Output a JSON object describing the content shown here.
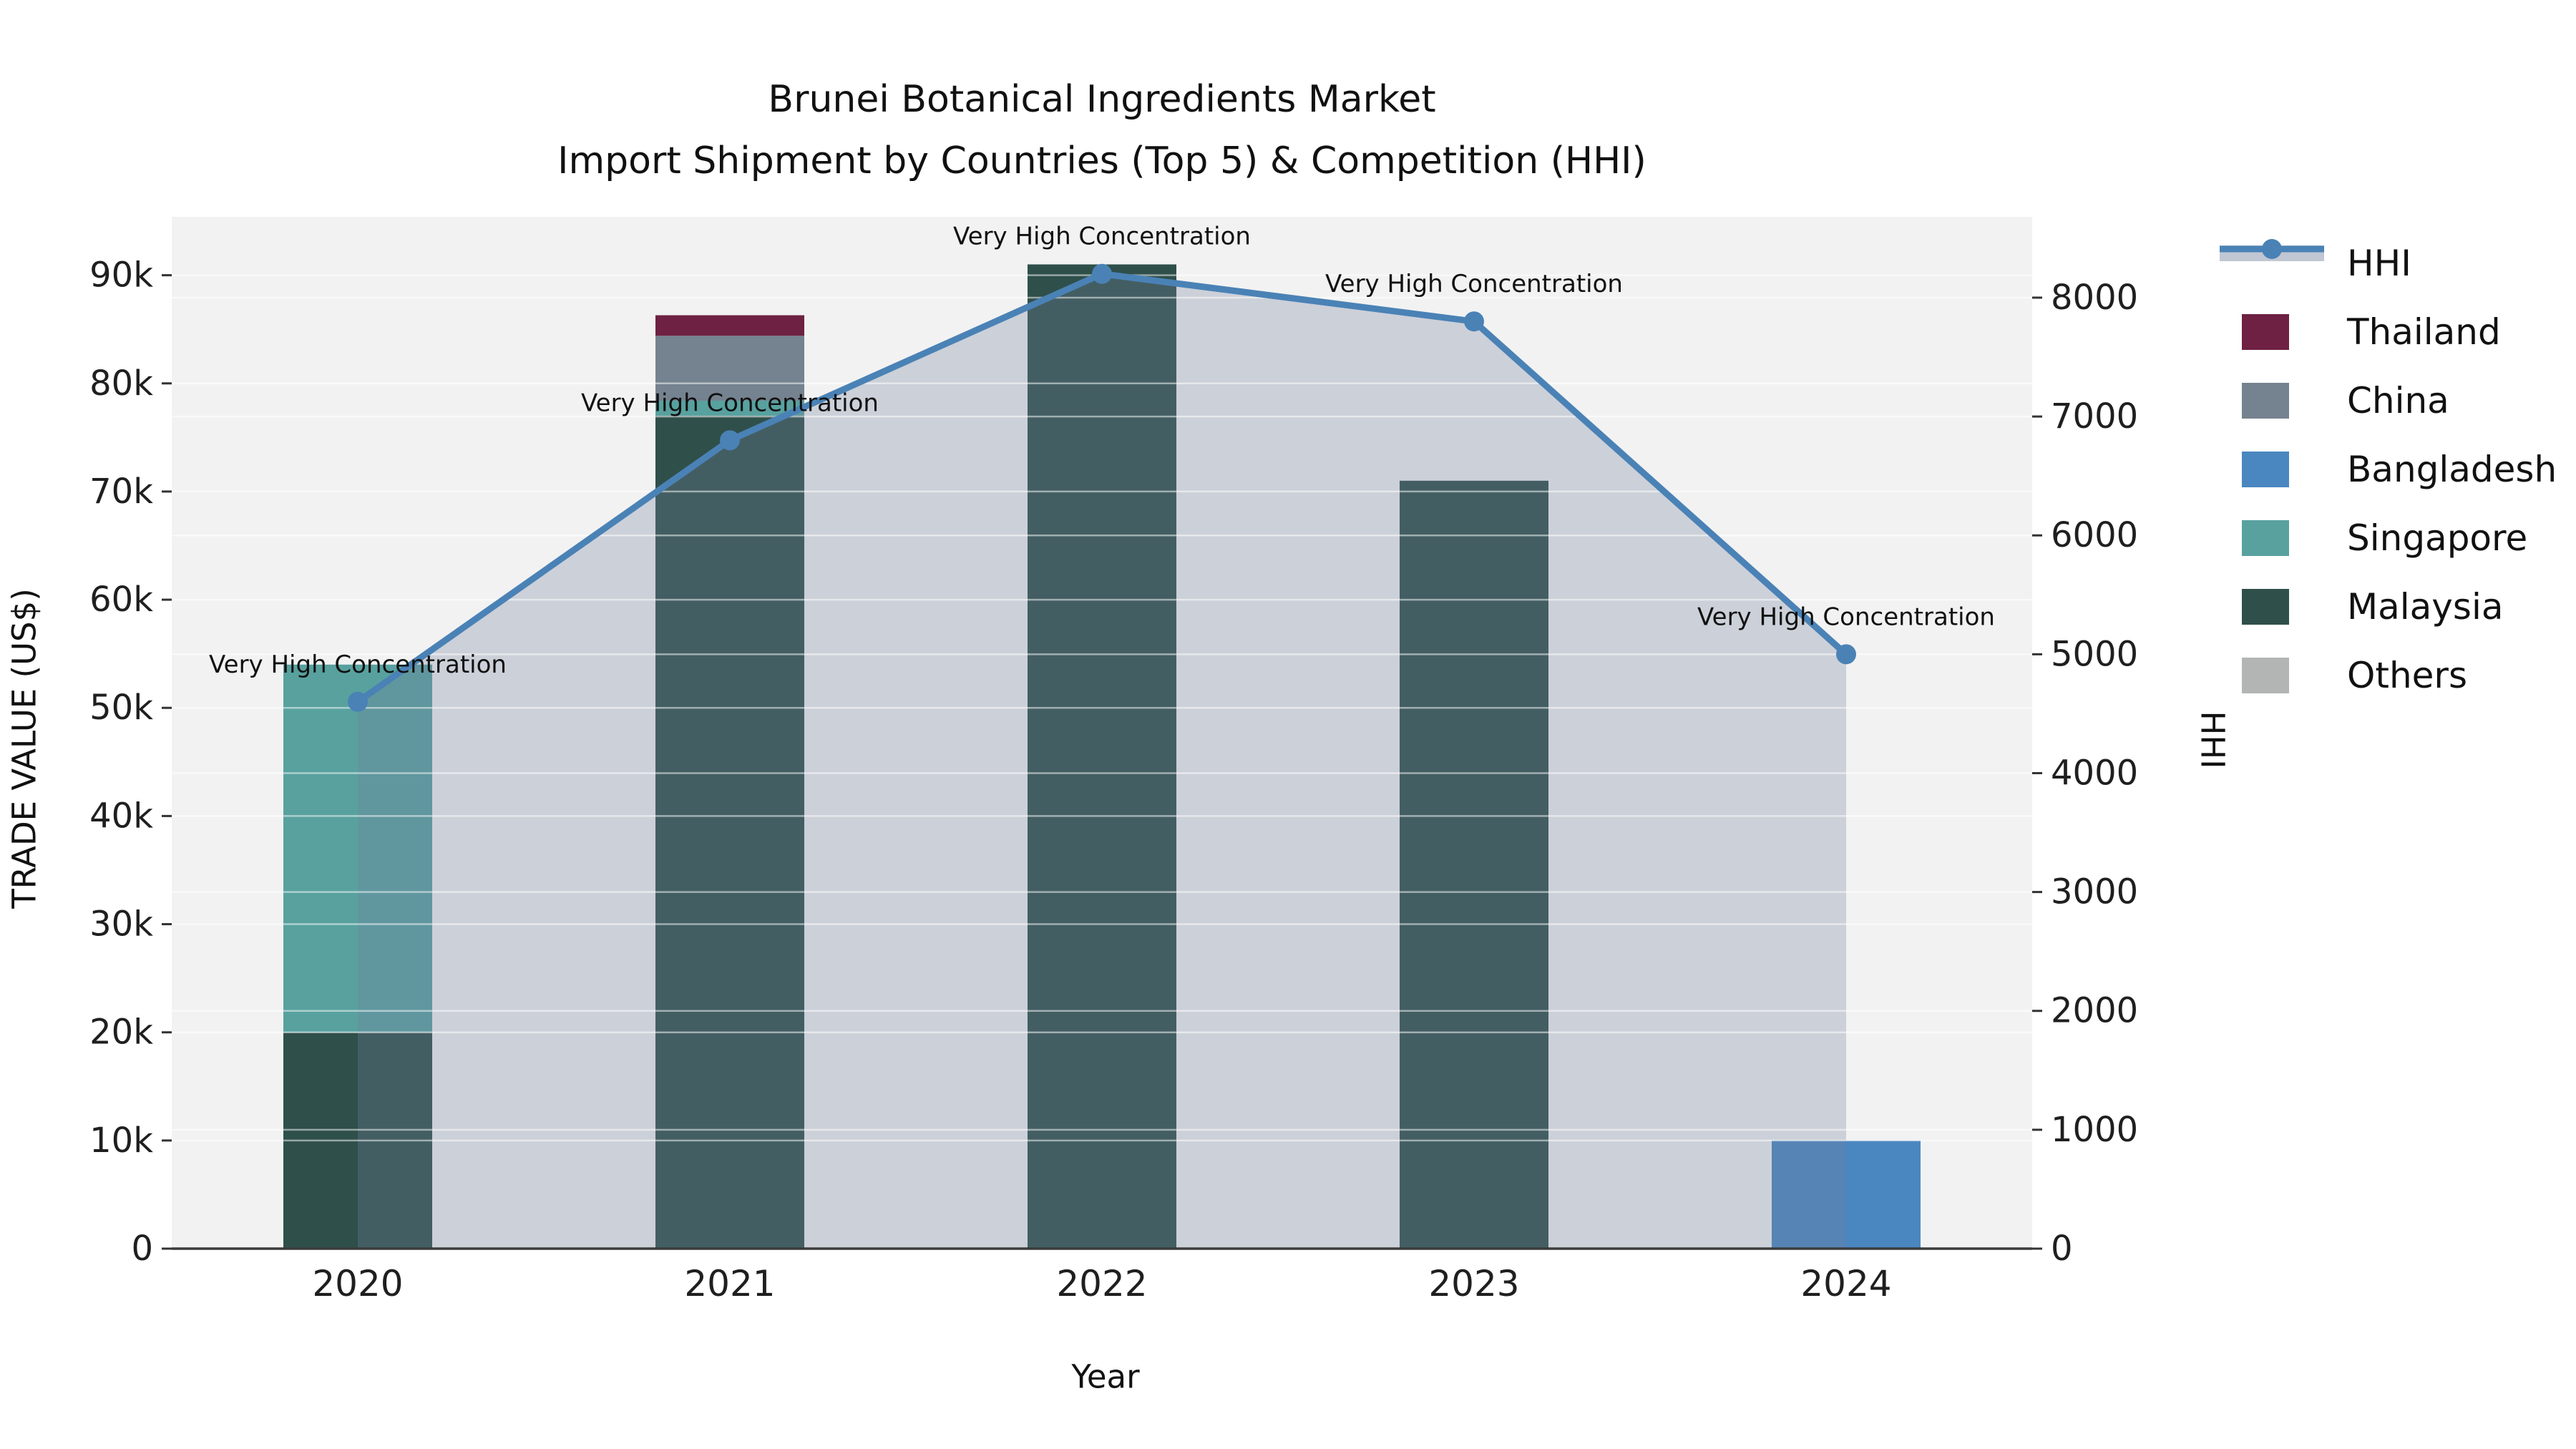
{
  "title": {
    "line1": "Brunei Botanical Ingredients Market",
    "line2": "Import Shipment by Countries (Top 5) & Competition (HHI)"
  },
  "chart_data": {
    "type": "bar+line",
    "title": "Brunei Botanical Ingredients Market\nImport Shipment by Countries (Top 5) & Competition (HHI)",
    "xlabel": "Year",
    "ylabel_left": "TRADE VALUE (US$)",
    "ylabel_right": "HHI",
    "categories": [
      "2020",
      "2021",
      "2022",
      "2023",
      "2024"
    ],
    "stack_order": [
      "Malaysia",
      "Singapore",
      "Bangladesh",
      "China",
      "Thailand"
    ],
    "series": [
      {
        "name": "Thailand",
        "values": [
          0,
          1900,
          0,
          0,
          0
        ],
        "color": "#6e2142"
      },
      {
        "name": "China",
        "values": [
          0,
          6000,
          0,
          0,
          0
        ],
        "color": "#75828f"
      },
      {
        "name": "Bangladesh",
        "values": [
          0,
          0,
          0,
          0,
          10000
        ],
        "color": "#4a86bf"
      },
      {
        "name": "Singapore",
        "values": [
          34000,
          1400,
          0,
          0,
          0
        ],
        "color": "#58a19f"
      },
      {
        "name": "Malaysia",
        "values": [
          20000,
          77000,
          91000,
          71000,
          0
        ],
        "color": "#2f4f4a"
      },
      {
        "name": "Others",
        "values": [
          0,
          0,
          0,
          0,
          0
        ],
        "color": "#b2b5b3"
      }
    ],
    "hhi_line": {
      "name": "HHI",
      "values": [
        4600,
        6800,
        8200,
        7800,
        5000
      ],
      "color": "#4a82b6",
      "area_fill": "rgba(115,130,158,0.30)",
      "filled_to_zero": true
    },
    "annotation_text": "Very High Concentration",
    "annotations": [
      {
        "x": "2020",
        "hhi": 4600,
        "label": "Very High Concentration"
      },
      {
        "x": "2021",
        "hhi": 6800,
        "label": "Very High Concentration"
      },
      {
        "x": "2022",
        "hhi": 8200,
        "label": "Very High Concentration"
      },
      {
        "x": "2023",
        "hhi": 7800,
        "label": "Very High Concentration"
      },
      {
        "x": "2024",
        "hhi": 5000,
        "label": "Very High Concentration"
      }
    ],
    "y_left": {
      "tick_labels": [
        "0",
        "10k",
        "20k",
        "30k",
        "40k",
        "50k",
        "60k",
        "70k",
        "80k",
        "90k"
      ],
      "tick_values": [
        0,
        10000,
        20000,
        30000,
        40000,
        50000,
        60000,
        70000,
        80000,
        90000
      ],
      "ylim": [
        0,
        95400
      ],
      "grid": true
    },
    "y_right": {
      "tick_labels": [
        "0",
        "1000",
        "2000",
        "3000",
        "4000",
        "5000",
        "6000",
        "7000",
        "8000"
      ],
      "tick_values": [
        0,
        1000,
        2000,
        3000,
        4000,
        5000,
        6000,
        7000,
        8000
      ],
      "ylim": [
        0,
        8680
      ],
      "grid": true
    },
    "legend": [
      {
        "label": "HHI",
        "kind": "line",
        "color": "#4a82b6"
      },
      {
        "label": "Thailand",
        "kind": "swatch",
        "color": "#6e2142"
      },
      {
        "label": "China",
        "kind": "swatch",
        "color": "#75828f"
      },
      {
        "label": "Bangladesh",
        "kind": "swatch",
        "color": "#4a86bf"
      },
      {
        "label": "Singapore",
        "kind": "swatch",
        "color": "#58a19f"
      },
      {
        "label": "Malaysia",
        "kind": "swatch",
        "color": "#2f4f4a"
      },
      {
        "label": "Others",
        "kind": "swatch",
        "color": "#b2b5b3"
      }
    ],
    "legend_position": "right",
    "colors": {
      "plot_background": "#f2f2f2",
      "page_background": "#ffffff",
      "gridline": "rgba(255,255,255,0.5)",
      "axis_spine": "#3b3b3b",
      "tick_text": "#1f1f1f",
      "annotation_text": "#111111"
    }
  }
}
